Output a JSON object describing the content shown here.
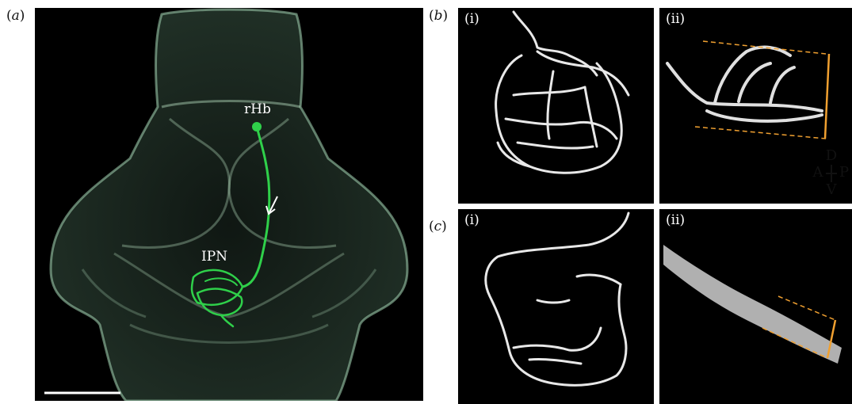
{
  "panels": {
    "a": {
      "label_open": "(",
      "label_letter": "a",
      "label_close": ")",
      "structures": {
        "rhb": "rHb",
        "ipn": "IPN"
      }
    },
    "b": {
      "label_open": "(",
      "label_letter": "b",
      "label_close": ")",
      "sub_i": "(i)",
      "sub_ii": "(ii)"
    },
    "c": {
      "label_open": "(",
      "label_letter": "c",
      "label_close": ")",
      "sub_i": "(i)",
      "sub_ii": "(ii)"
    }
  },
  "orientation": {
    "dorsal": "D",
    "anterior": "A",
    "posterior": "P",
    "ventral": "V"
  },
  "colors": {
    "neuron": "#2fd04a",
    "brain_outline": "#9fd0a8",
    "bracket": "#f0a030",
    "axon_gray": "#e8e8e8"
  }
}
